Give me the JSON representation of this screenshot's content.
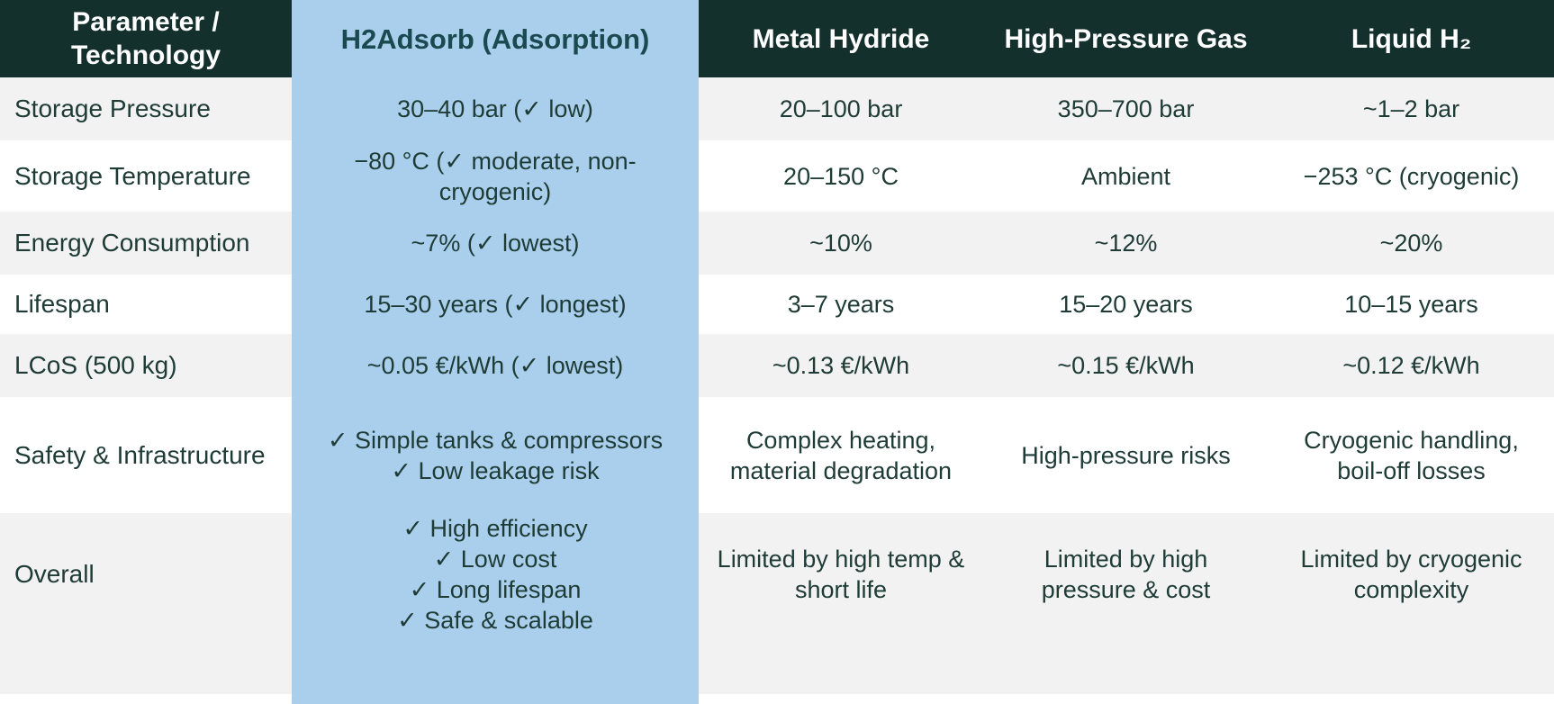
{
  "colors": {
    "header_bg": "#14302d",
    "header_text": "#ffffff",
    "highlight_bg": "#a9cfec",
    "highlight_header_text": "#1a4a50",
    "body_text": "#1e3b36",
    "row_bg": "#ffffff",
    "row_alt_bg": "#f1f2f1"
  },
  "table": {
    "header": [
      "Parameter /\nTechnology",
      "H2Adsorb (Adsorption)",
      "Metal Hydride",
      "High-Pressure Gas",
      "Liquid H₂"
    ],
    "rows": [
      {
        "label": "Storage Pressure",
        "cells": [
          "30–40 bar (✓ low)",
          "20–100 bar",
          "350–700 bar",
          "~1–2 bar"
        ]
      },
      {
        "label": "Storage Temperature",
        "cells": [
          "−80 °C (✓ moderate, non-\ncryogenic)",
          "20–150 °C",
          "Ambient",
          "−253 °C (cryogenic)"
        ]
      },
      {
        "label": "Energy Consumption",
        "cells": [
          "~7% (✓ lowest)",
          "~10%",
          "~12%",
          "~20%"
        ]
      },
      {
        "label": "Lifespan",
        "cells": [
          "15–30 years (✓ longest)",
          "3–7 years",
          "15–20 years",
          "10–15 years"
        ]
      },
      {
        "label": "LCoS (500 kg)",
        "cells": [
          "~0.05 €/kWh (✓ lowest)",
          "~0.13 €/kWh",
          "~0.15 €/kWh",
          "~0.12 €/kWh"
        ]
      },
      {
        "label": "Safety & Infrastructure",
        "cells": [
          "✓ Simple tanks & compressors\n✓ Low leakage risk",
          "Complex heating,\nmaterial degradation",
          "High-pressure risks",
          "Cryogenic handling,\nboil-off losses"
        ]
      },
      {
        "label": "Overall",
        "cells": [
          "✓ High efficiency\n✓ Low cost\n✓ Long lifespan\n✓ Safe & scalable",
          "Limited by high temp &\nshort life",
          "Limited by high\npressure & cost",
          "Limited by cryogenic\ncomplexity"
        ]
      }
    ]
  },
  "chart_data": {
    "type": "table",
    "title": "",
    "columns": [
      "Parameter / Technology",
      "H2Adsorb (Adsorption)",
      "Metal Hydride",
      "High-Pressure Gas",
      "Liquid H₂"
    ],
    "highlighted_column": "H2Adsorb (Adsorption)",
    "rows": [
      [
        "Storage Pressure",
        "30–40 bar (✓ low)",
        "20–100 bar",
        "350–700 bar",
        "~1–2 bar"
      ],
      [
        "Storage Temperature",
        "−80 °C (✓ moderate, non-cryogenic)",
        "20–150 °C",
        "Ambient",
        "−253 °C (cryogenic)"
      ],
      [
        "Energy Consumption",
        "~7% (✓ lowest)",
        "~10%",
        "~12%",
        "~20%"
      ],
      [
        "Lifespan",
        "15–30 years (✓ longest)",
        "3–7 years",
        "15–20 years",
        "10–15 years"
      ],
      [
        "LCoS (500 kg)",
        "~0.05 €/kWh (✓ lowest)",
        "~0.13 €/kWh",
        "~0.15 €/kWh",
        "~0.12 €/kWh"
      ],
      [
        "Safety & Infrastructure",
        "✓ Simple tanks & compressors; ✓ Low leakage risk",
        "Complex heating, material degradation",
        "High-pressure risks",
        "Cryogenic handling, boil-off losses"
      ],
      [
        "Overall",
        "✓ High efficiency; ✓ Low cost; ✓ Long lifespan; ✓ Safe & scalable",
        "Limited by high temp & short life",
        "Limited by high pressure & cost",
        "Limited by cryogenic complexity"
      ]
    ]
  }
}
